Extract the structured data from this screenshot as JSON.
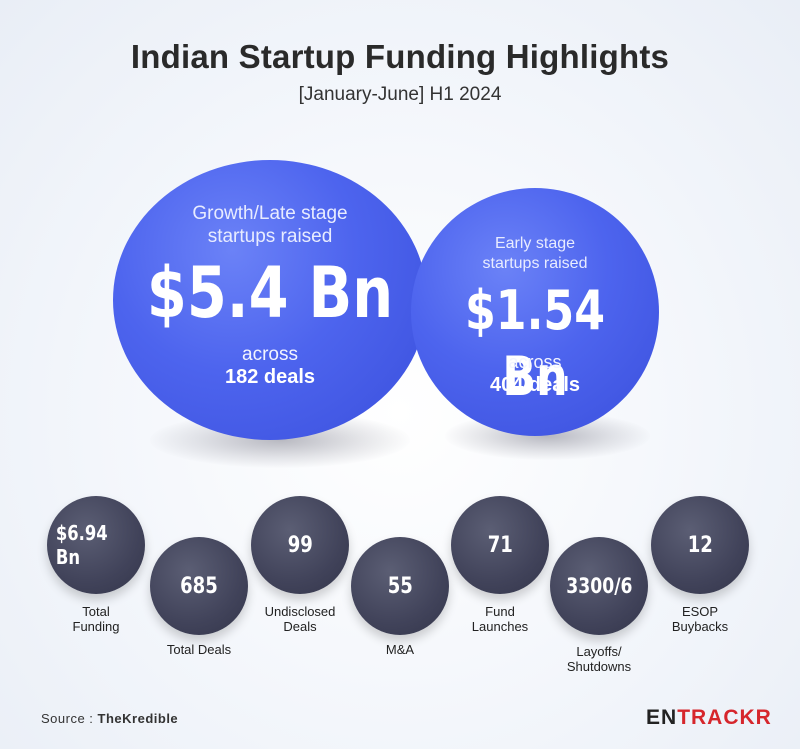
{
  "header": {
    "title": "Indian Startup Funding Highlights",
    "subtitle": "[January-June] H1 2024"
  },
  "growth": {
    "label_line1": "Growth/Late stage",
    "label_line2": "startups raised",
    "amount": "$5.4 Bn",
    "across": "across",
    "deals": "182 deals"
  },
  "early": {
    "label_line1": "Early stage",
    "label_line2": "startups raised",
    "amount": "$1.54 Bn",
    "across": "across",
    "deals": "404 deals"
  },
  "stats": [
    {
      "value": "$6.94 Bn",
      "caption_line1": "Total",
      "caption_line2": "Funding"
    },
    {
      "value": "685",
      "caption_line1": "Total Deals",
      "caption_line2": ""
    },
    {
      "value": "99",
      "caption_line1": "Undisclosed",
      "caption_line2": "Deals"
    },
    {
      "value": "55",
      "caption_line1": "M&A",
      "caption_line2": ""
    },
    {
      "value": "71",
      "caption_line1": "Fund",
      "caption_line2": "Launches"
    },
    {
      "value": "3300/6",
      "caption_line1": "Layoffs/",
      "caption_line2": "Shutdowns"
    },
    {
      "value": "12",
      "caption_line1": "ESOP",
      "caption_line2": "Buybacks"
    }
  ],
  "footer": {
    "source_label": "Source : ",
    "source_name": "TheKredible",
    "logo_part1": "EN",
    "logo_part2": "TRACKR"
  },
  "colors": {
    "big_circle": "#4d64ee",
    "small_circle": "#41435a",
    "logo_red": "#d6262c"
  }
}
